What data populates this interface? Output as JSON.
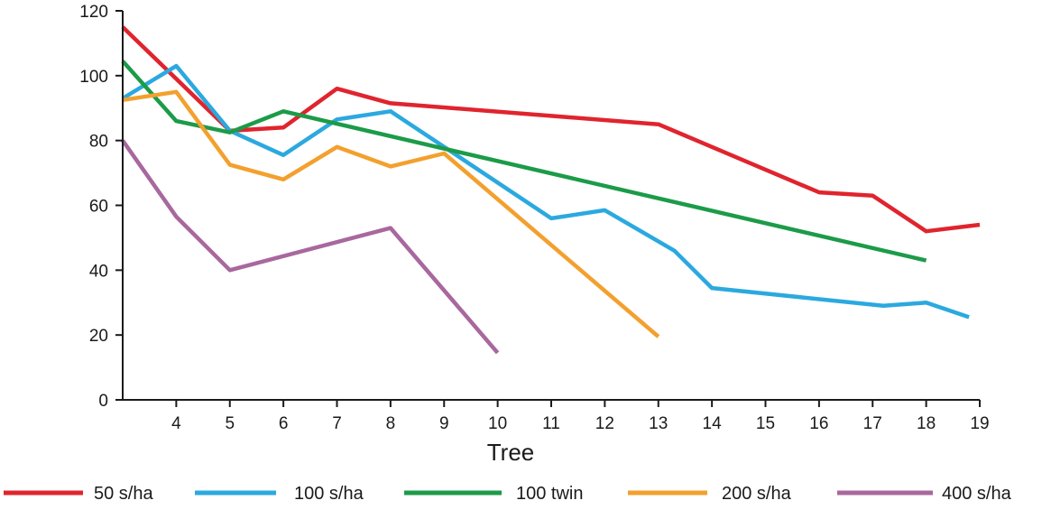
{
  "chart_data": {
    "type": "line",
    "title": "",
    "xlabel": "Tree",
    "ylabel": "",
    "xlim": [
      3,
      19
    ],
    "ylim": [
      0,
      120
    ],
    "x_ticks": [
      4,
      5,
      6,
      7,
      8,
      9,
      10,
      11,
      12,
      13,
      14,
      15,
      16,
      17,
      18,
      19
    ],
    "y_ticks": [
      0,
      20,
      40,
      60,
      80,
      100,
      120
    ],
    "grid": false,
    "legend_position": "bottom",
    "series": [
      {
        "name": "50 s/ha",
        "color": "#e0242e",
        "points": [
          [
            3,
            115
          ],
          [
            4,
            99
          ],
          [
            5,
            83
          ],
          [
            6,
            84
          ],
          [
            7,
            96
          ],
          [
            8,
            91.5
          ],
          [
            13,
            85
          ],
          [
            16,
            64
          ],
          [
            17,
            63
          ],
          [
            18,
            52
          ],
          [
            19,
            54
          ]
        ]
      },
      {
        "name": "100 s/ha",
        "color": "#2ba9df",
        "points": [
          [
            3,
            93
          ],
          [
            4,
            103
          ],
          [
            5,
            83
          ],
          [
            6,
            75.5
          ],
          [
            7,
            86.5
          ],
          [
            8,
            89
          ],
          [
            9,
            78
          ],
          [
            11,
            56
          ],
          [
            12,
            58.5
          ],
          [
            13.3,
            46
          ],
          [
            14,
            34.5
          ],
          [
            17.2,
            29
          ],
          [
            18,
            30
          ],
          [
            18.8,
            25.5
          ]
        ]
      },
      {
        "name": "100 twin",
        "color": "#1c9b48",
        "points": [
          [
            3,
            104.5
          ],
          [
            4,
            86
          ],
          [
            5,
            82.5
          ],
          [
            6,
            89
          ],
          [
            18,
            43
          ]
        ]
      },
      {
        "name": "200 s/ha",
        "color": "#f3a02e",
        "points": [
          [
            3,
            92.5
          ],
          [
            4,
            95
          ],
          [
            5,
            72.5
          ],
          [
            6,
            68
          ],
          [
            7,
            78
          ],
          [
            8,
            72
          ],
          [
            9,
            76
          ],
          [
            13,
            19.5
          ]
        ]
      },
      {
        "name": "400 s/ha",
        "color": "#a8689e",
        "points": [
          [
            3,
            80
          ],
          [
            4,
            56.5
          ],
          [
            5,
            40
          ],
          [
            8,
            53
          ],
          [
            10,
            14.5
          ]
        ]
      }
    ]
  }
}
